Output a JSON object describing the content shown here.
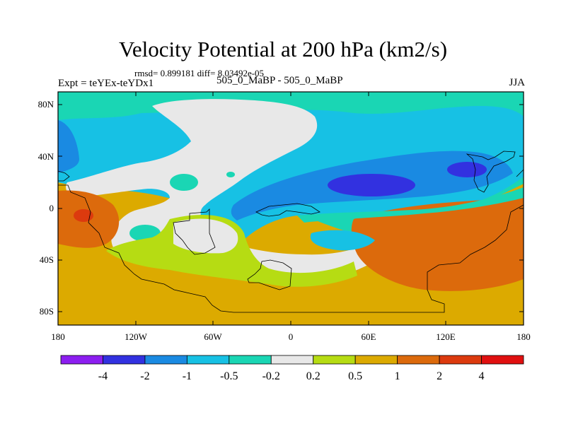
{
  "header": {
    "title": "Velocity Potential at 200 hPa (km2/s)",
    "stats": "rmsd= 0.899181 diff= 8.03492e-05",
    "experiment": "Expt = teYEx-teYDx1",
    "case": "505_0_MaBP - 505_0_MaBP",
    "season": "JJA"
  },
  "axes": {
    "lat_labels": [
      "80N",
      "40N",
      "0",
      "40S",
      "80S"
    ],
    "lon_labels": [
      "180",
      "120W",
      "60W",
      "0",
      "60E",
      "120E",
      "180"
    ]
  },
  "colorbar": {
    "labels": [
      "-4",
      "-2",
      "-1",
      "-0.5",
      "-0.2",
      "0.2",
      "0.5",
      "1",
      "2",
      "4"
    ],
    "colors": [
      "#8c1ef0",
      "#3231e0",
      "#1a8ae2",
      "#17c1e4",
      "#1ad6b4",
      "#e8e8e8",
      "#b6dc13",
      "#dcaa00",
      "#dc6a0c",
      "#dc3a0e",
      "#e01010"
    ]
  }
}
